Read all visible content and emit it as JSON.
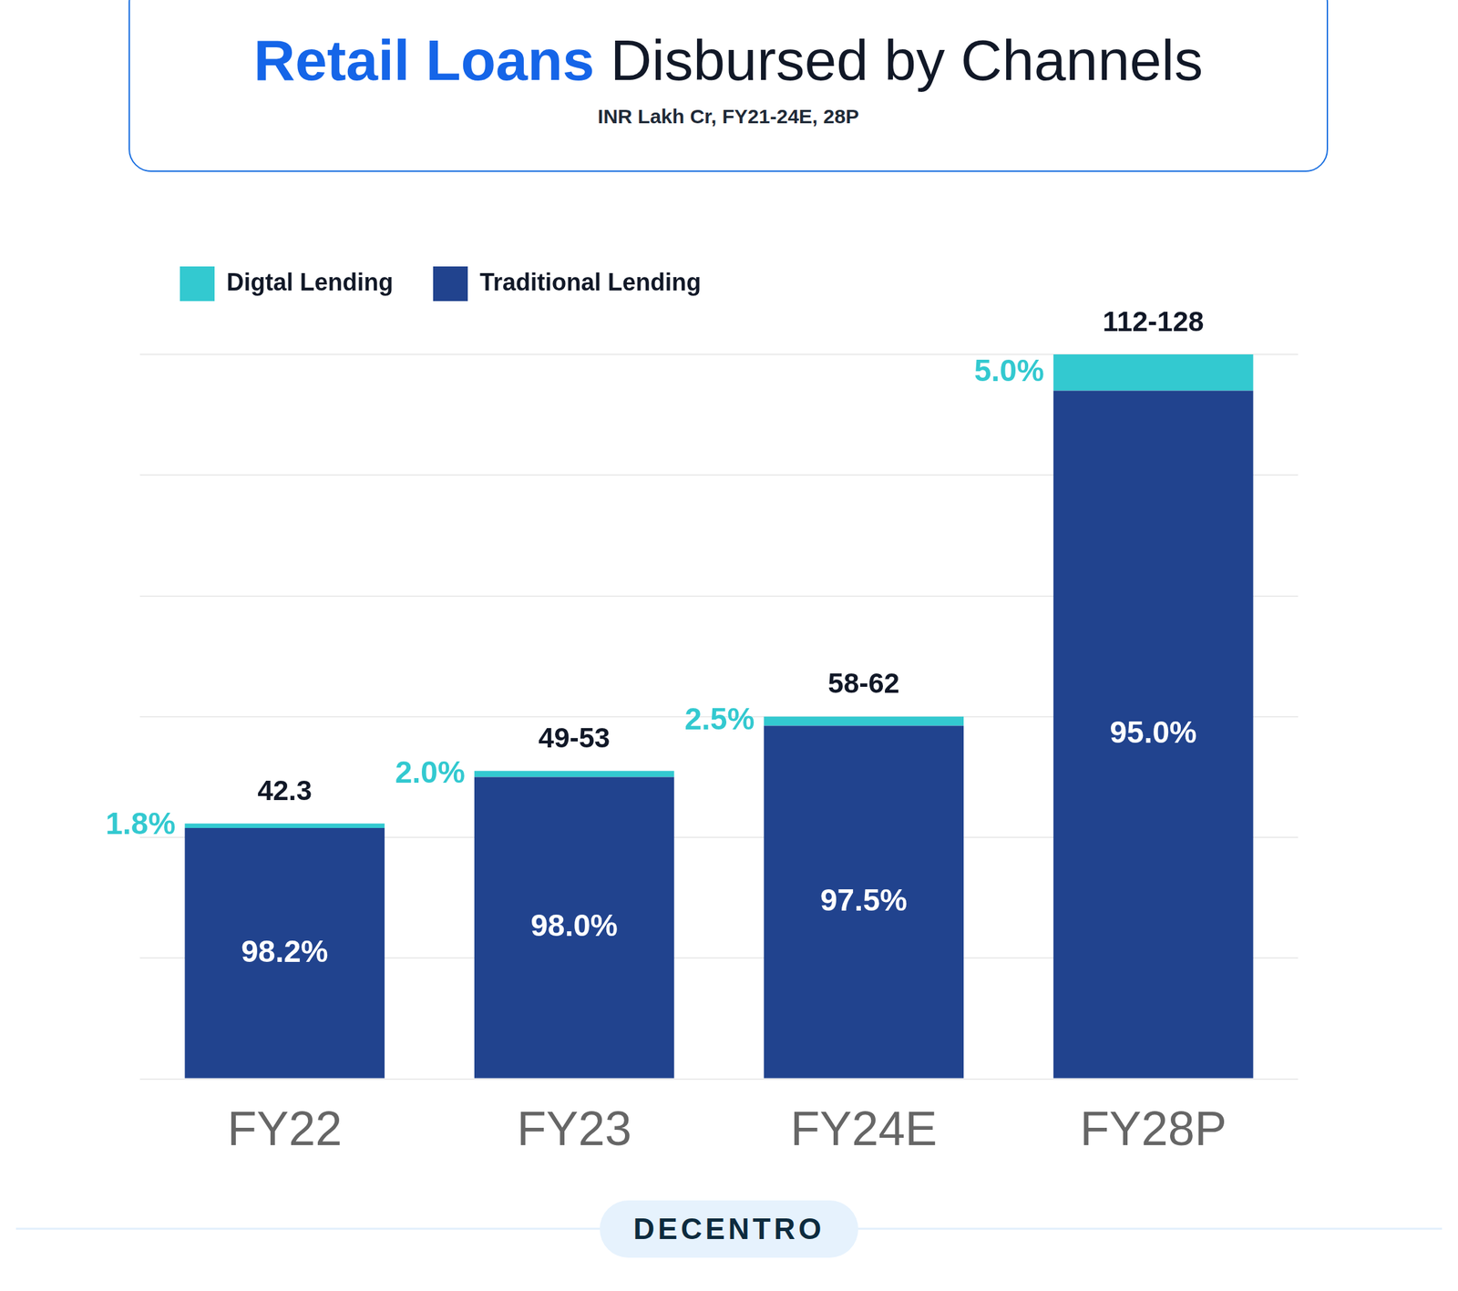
{
  "chart_data": {
    "type": "bar",
    "title": "Retail Loans Disbursed by Channels",
    "title_highlight": "Retail Loans",
    "subtitle": "INR Lakh Cr, FY21-24E, 28P",
    "footer": "DECENTRO",
    "categories": [
      "FY22",
      "FY23",
      "FY24E",
      "FY28P"
    ],
    "series": [
      {
        "name": "Traditional Lending",
        "color": "#21438e",
        "values": [
          41.54,
          49.98,
          58.5,
          114
        ],
        "share_labels": [
          "98.2%",
          "98.0%",
          "97.5%",
          "95.0%"
        ]
      },
      {
        "name": "Digtal Lending",
        "color": "#33c9d0",
        "values": [
          0.76,
          1.02,
          1.5,
          6
        ],
        "share_labels": [
          "1.8%",
          "2.0%",
          "2.5%",
          "5.0%"
        ]
      }
    ],
    "total_labels": [
      "42.3",
      "49-53",
      "58-62",
      "112-128"
    ],
    "ylim": [
      0,
      120
    ],
    "yticks": [
      0,
      20,
      40,
      60,
      80,
      100,
      120
    ],
    "stacked": true,
    "grid": true,
    "legend": "top-left",
    "tick_labels": "x"
  }
}
